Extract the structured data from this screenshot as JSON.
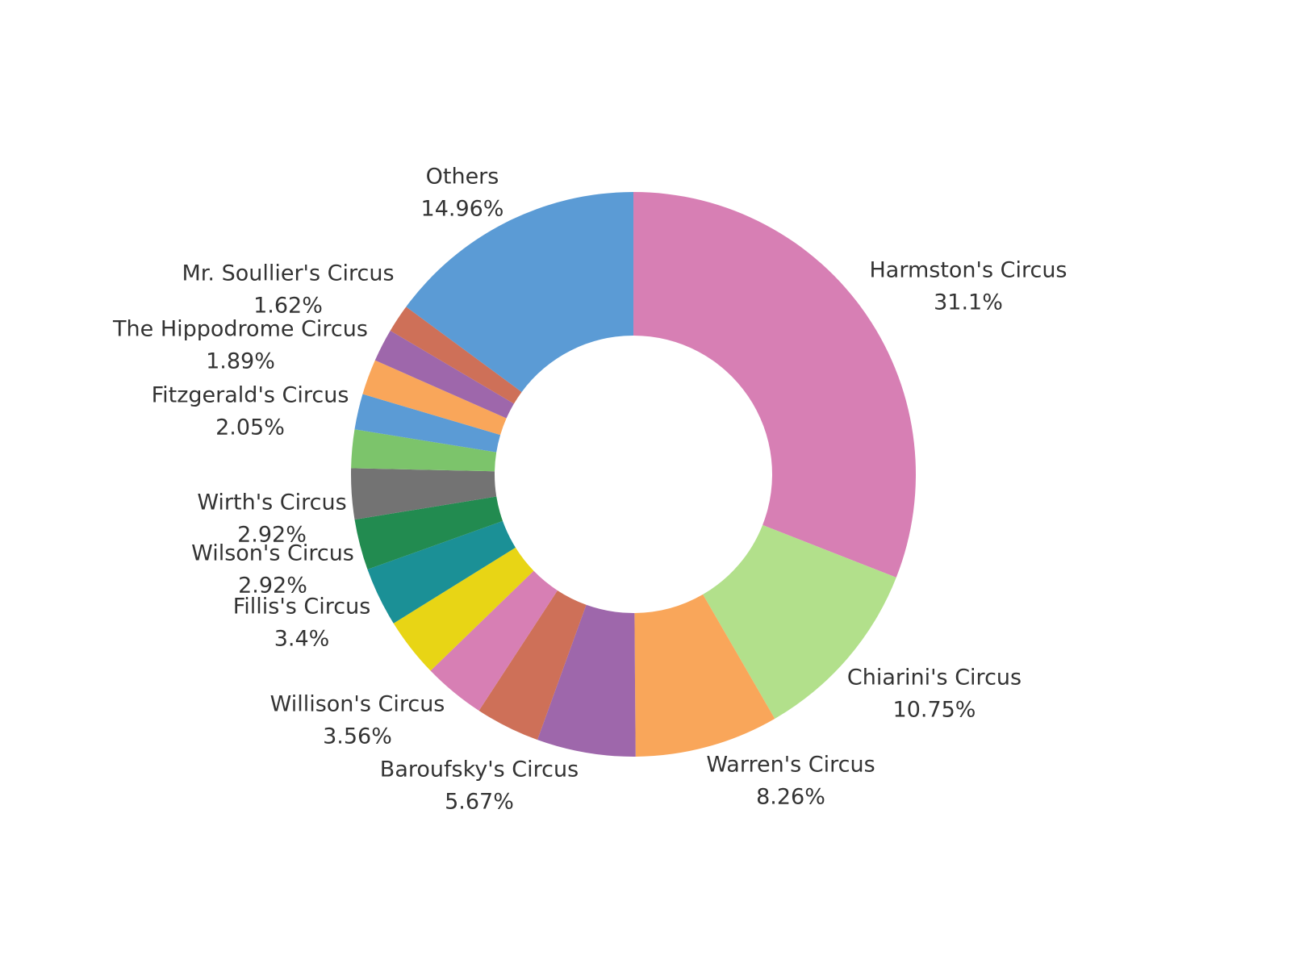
{
  "chart_data": {
    "type": "pie",
    "donut": true,
    "legend": "none",
    "slices": [
      {
        "label": "Harmston's Circus",
        "value": 31.1,
        "value_label": "31.1%",
        "color": "#d77fb4",
        "show_label": true
      },
      {
        "label": "Chiarini's Circus",
        "value": 10.75,
        "value_label": "10.75%",
        "color": "#b2e08b",
        "show_label": true
      },
      {
        "label": "Warren's Circus",
        "value": 8.26,
        "value_label": "8.26%",
        "color": "#f9a65a",
        "show_label": true
      },
      {
        "label": "Baroufsky's Circus",
        "value": 5.67,
        "value_label": "5.67%",
        "color": "#9e67ab",
        "show_label": true
      },
      {
        "label": "",
        "value": 3.71,
        "value_label": "",
        "color": "#ce7058",
        "show_label": false
      },
      {
        "label": "Willison's Circus",
        "value": 3.56,
        "value_label": "3.56%",
        "color": "#d77fb4",
        "show_label": true
      },
      {
        "label": "",
        "value": 3.41,
        "value_label": "",
        "color": "#e8d515",
        "show_label": false
      },
      {
        "label": "Fillis's Circus",
        "value": 3.4,
        "value_label": "3.4%",
        "color": "#1b9096",
        "show_label": true
      },
      {
        "label": "Wilson's Circus",
        "value": 2.92,
        "value_label": "2.92%",
        "color": "#228b50",
        "show_label": true
      },
      {
        "label": "Wirth's Circus",
        "value": 2.92,
        "value_label": "2.92%",
        "color": "#737373",
        "show_label": true
      },
      {
        "label": "",
        "value": 2.21,
        "value_label": "",
        "color": "#7cc46b",
        "show_label": false
      },
      {
        "label": "Fitzgerald's Circus",
        "value": 2.05,
        "value_label": "2.05%",
        "color": "#5b9bd5",
        "show_label": true
      },
      {
        "label": "",
        "value": 2.04,
        "value_label": "",
        "color": "#f9a65a",
        "show_label": false
      },
      {
        "label": "The Hippodrome Circus",
        "value": 1.89,
        "value_label": "1.89%",
        "color": "#9e67ab",
        "show_label": true
      },
      {
        "label": "Mr. Soullier's Circus",
        "value": 1.62,
        "value_label": "1.62%",
        "color": "#ce7058",
        "show_label": true
      },
      {
        "label": "Others",
        "value": 14.96,
        "value_label": "14.96%",
        "color": "#5b9bd5",
        "show_label": true
      }
    ]
  }
}
